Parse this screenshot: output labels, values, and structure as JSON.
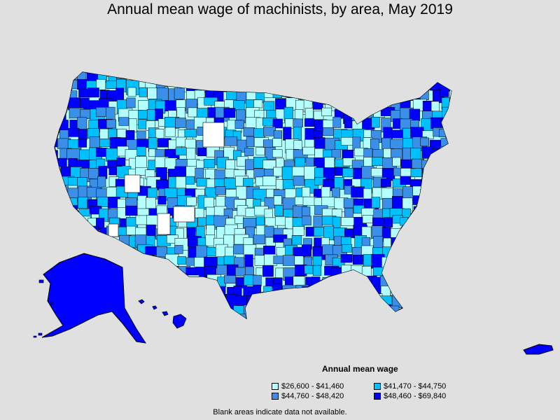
{
  "title": "Annual mean wage of machinists, by area, May 2019",
  "legend": {
    "title": "Annual mean wage",
    "items": [
      {
        "label": "$26,600 - $41,460",
        "color": "#b3ffff"
      },
      {
        "label": "$41,470 - $44,750",
        "color": "#00c0ff"
      },
      {
        "label": "$44,760 - $48,420",
        "color": "#3a8fe8"
      },
      {
        "label": "$48,460 - $69,840",
        "color": "#0000ff"
      }
    ]
  },
  "footnote": "Blank areas indicate data not available.",
  "colors": {
    "background": "#e0e0e0",
    "no_data": "#ffffff",
    "border": "#000000"
  }
}
